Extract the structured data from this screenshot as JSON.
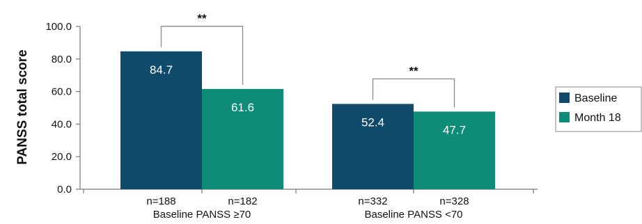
{
  "chart_data": {
    "type": "bar",
    "ylabel": "PANSS total score",
    "ylim": [
      0,
      100
    ],
    "yticks": [
      "0.0",
      "20.0",
      "40.0",
      "60.0",
      "80.0",
      "100.0"
    ],
    "groups": [
      {
        "label": "Baseline PANSS ≥70",
        "n_labels": [
          "n=188",
          "n=182"
        ],
        "significance": "**"
      },
      {
        "label": "Baseline PANSS <70",
        "n_labels": [
          "n=332",
          "n=328"
        ],
        "significance": "**"
      }
    ],
    "series": [
      {
        "name": "Baseline",
        "color": "#0f4a6b",
        "values": [
          84.7,
          52.4
        ],
        "value_labels": [
          "84.7",
          "52.4"
        ]
      },
      {
        "name": "Month 18",
        "color": "#0f8c78",
        "values": [
          61.6,
          47.7
        ],
        "value_labels": [
          "61.6",
          "47.7"
        ]
      }
    ],
    "legend_position": "right",
    "grid": false
  }
}
